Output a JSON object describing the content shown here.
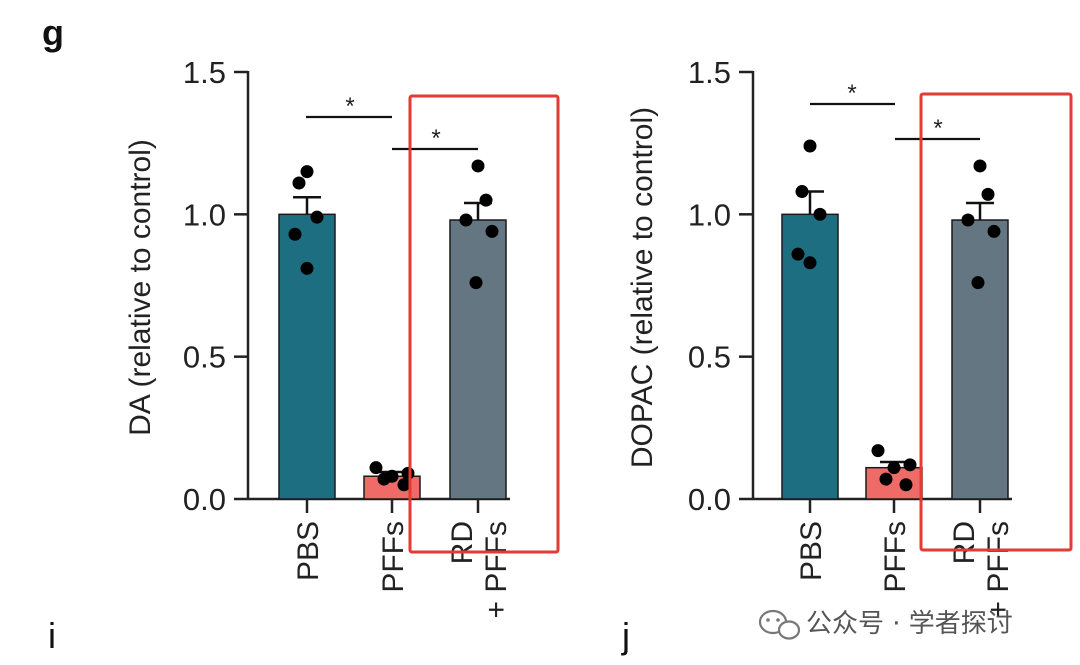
{
  "panel_letters": {
    "top": "g",
    "bottom_left": "i",
    "bottom_right": "j"
  },
  "watermark": {
    "text": "公众号 · 学者探讨",
    "icon": "wechat-icon"
  },
  "colors": {
    "PBS": "#1e6e82",
    "PFFs": "#ef6b67",
    "RD + PFFs": "#647682",
    "highlight": "#e53935",
    "points": "#000000"
  },
  "chart_data": [
    {
      "type": "bar",
      "panel": "g",
      "ylabel": "DA (relative to control)",
      "ylim": [
        0,
        1.5
      ],
      "yticks": [
        "0.0",
        "0.5",
        "1.0",
        "1.5"
      ],
      "categories": [
        "PBS",
        "PFFs",
        "RD\n+ PFFs"
      ],
      "values": [
        1.0,
        0.08,
        0.98
      ],
      "errors": [
        0.06,
        0.015,
        0.06
      ],
      "points": [
        [
          1.15,
          1.11,
          0.99,
          0.93,
          0.81
        ],
        [
          0.11,
          0.09,
          0.08,
          0.07,
          0.05
        ],
        [
          1.17,
          1.05,
          0.98,
          0.94,
          0.76
        ]
      ],
      "significance": [
        {
          "between": [
            0,
            1
          ],
          "label": "*"
        },
        {
          "between": [
            1,
            2
          ],
          "label": "*"
        }
      ],
      "highlighted_category": 2,
      "legend": "none",
      "grid": false
    },
    {
      "type": "bar",
      "panel": "g",
      "ylabel": "DOPAC (relative to control)",
      "ylim": [
        0,
        1.5
      ],
      "yticks": [
        "0.0",
        "0.5",
        "1.0",
        "1.5"
      ],
      "categories": [
        "PBS",
        "PFFs",
        "RD\n+ PFFs"
      ],
      "values": [
        1.0,
        0.11,
        0.98
      ],
      "errors": [
        0.08,
        0.02,
        0.06
      ],
      "points": [
        [
          1.24,
          1.08,
          1.0,
          0.86,
          0.83
        ],
        [
          0.17,
          0.12,
          0.11,
          0.07,
          0.05
        ],
        [
          1.17,
          1.07,
          0.98,
          0.94,
          0.76
        ]
      ],
      "significance": [
        {
          "between": [
            0,
            1
          ],
          "label": "*"
        },
        {
          "between": [
            1,
            2
          ],
          "label": "*"
        }
      ],
      "highlighted_category": 2,
      "legend": "none",
      "grid": false
    }
  ]
}
